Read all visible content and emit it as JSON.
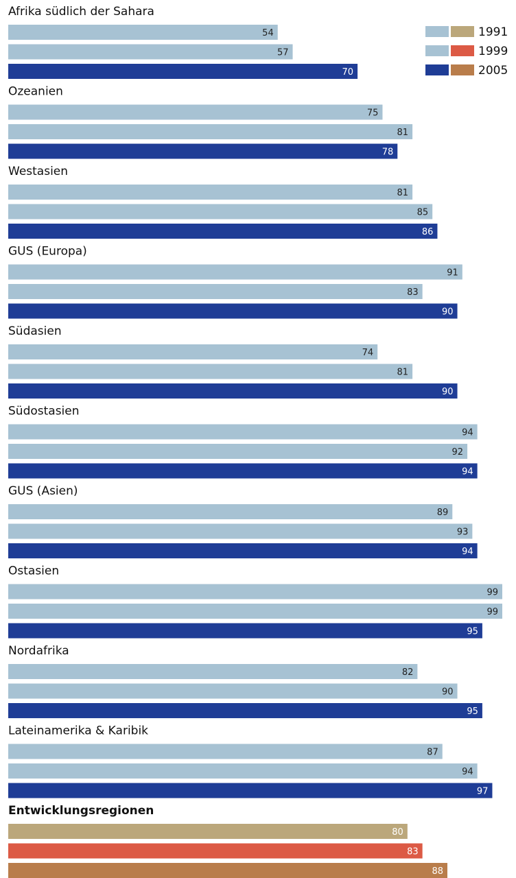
{
  "chart_data": {
    "type": "bar",
    "orientation": "horizontal",
    "legend": {
      "placement": "top-right",
      "entries": [
        {
          "year": "1991",
          "regional_color": "#a7c2d3",
          "total_color": "#bba77b"
        },
        {
          "year": "1999",
          "regional_color": "#a7c2d3",
          "total_color": "#dc5a45"
        },
        {
          "year": "2005",
          "regional_color": "#1f3d96",
          "total_color": "#b97d4b"
        }
      ]
    },
    "value_scale_max": 99,
    "groups": [
      {
        "label": "Afrika südlich der Sahara",
        "bold": false,
        "values": [
          54,
          57,
          70
        ]
      },
      {
        "label": "Ozeanien",
        "bold": false,
        "values": [
          75,
          81,
          78
        ]
      },
      {
        "label": "Westasien",
        "bold": false,
        "values": [
          81,
          85,
          86
        ]
      },
      {
        "label": "GUS (Europa)",
        "bold": false,
        "values": [
          91,
          83,
          90
        ]
      },
      {
        "label": "Südasien",
        "bold": false,
        "values": [
          74,
          81,
          90
        ]
      },
      {
        "label": "Südostasien",
        "bold": false,
        "values": [
          94,
          92,
          94
        ]
      },
      {
        "label": "GUS (Asien)",
        "bold": false,
        "values": [
          89,
          93,
          94
        ]
      },
      {
        "label": "Ostasien",
        "bold": false,
        "values": [
          99,
          99,
          95
        ]
      },
      {
        "label": "Nordafrika",
        "bold": false,
        "values": [
          82,
          90,
          95
        ]
      },
      {
        "label": "Lateinamerika & Karibik",
        "bold": false,
        "values": [
          87,
          94,
          97
        ]
      },
      {
        "label": "Entwicklungsregionen",
        "bold": true,
        "values": [
          80,
          83,
          88
        ],
        "use_total_colors": true
      }
    ],
    "colors": {
      "label_dark_bg": "#ffffff",
      "label_light_bg": "#222222"
    }
  }
}
